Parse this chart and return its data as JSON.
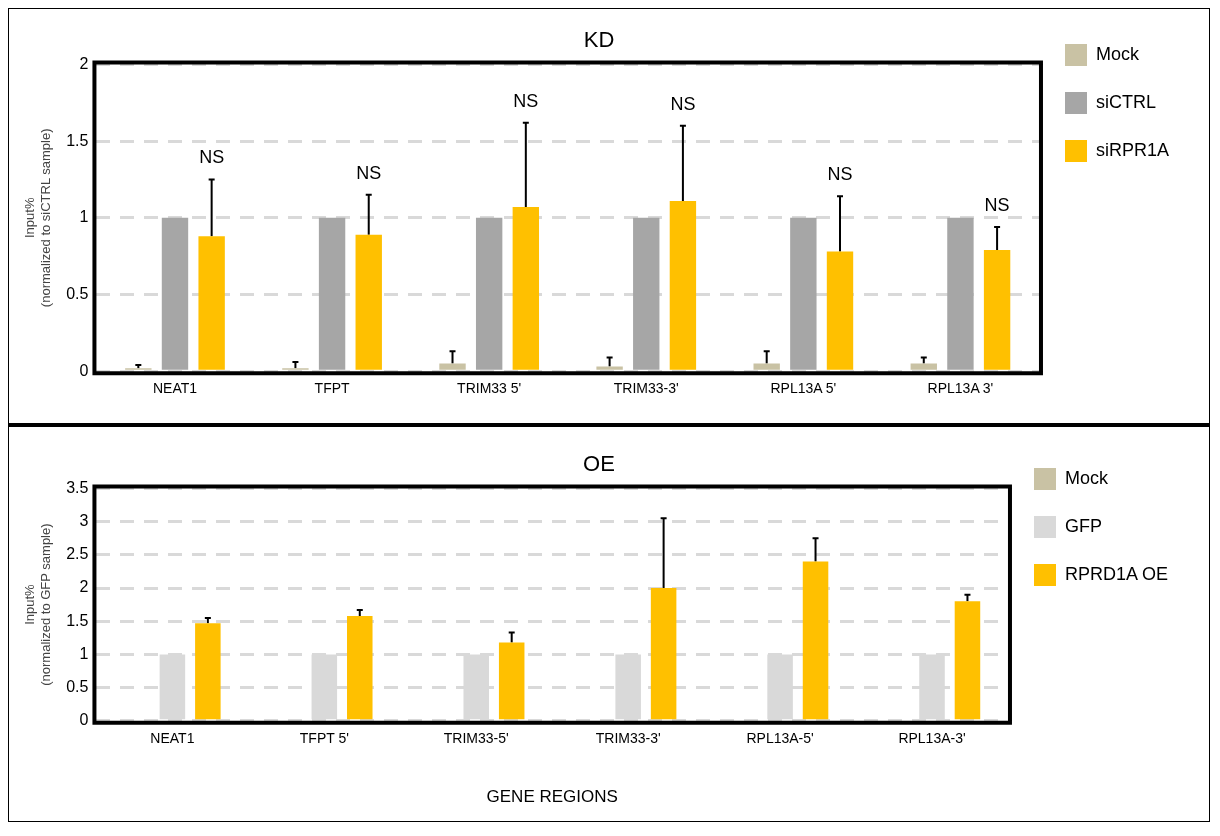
{
  "chart_data": [
    {
      "type": "bar",
      "title": "KD",
      "ylabel": "Input%\n(normalized to siCTRL sample)",
      "categories": [
        "NEAT1",
        "TFPT",
        "TRIM33 5'",
        "TRIM33-3'",
        "RPL13A 5'",
        "RPL13A 3'"
      ],
      "series": [
        {
          "name": "Mock",
          "color": "#c9c2a4",
          "values": [
            0.02,
            0.02,
            0.05,
            0.03,
            0.05,
            0.05
          ],
          "errors": [
            [
              0.02,
              0.04
            ],
            [
              0.02,
              0.06
            ],
            [
              0.05,
              0.13
            ],
            [
              0.03,
              0.09
            ],
            [
              0.05,
              0.13
            ],
            [
              0.05,
              0.09
            ]
          ]
        },
        {
          "name": "siCTRL",
          "color": "#a6a6a6",
          "values": [
            1,
            1,
            1,
            1,
            1,
            1
          ]
        },
        {
          "name": "siRPR1A",
          "color": "#ffc000",
          "values": [
            0.88,
            0.89,
            1.07,
            1.11,
            0.78,
            0.79
          ],
          "errors": [
            [
              0.88,
              1.25
            ],
            [
              0.89,
              1.15
            ],
            [
              1.07,
              1.62
            ],
            [
              1.11,
              1.6
            ],
            [
              0.78,
              1.14
            ],
            [
              0.79,
              0.94
            ]
          ]
        }
      ],
      "ylim": [
        0,
        2
      ],
      "yticks": [
        0,
        0.5,
        1,
        1.5,
        2
      ],
      "grid": "y",
      "legend": "right",
      "annotations": [
        "NS",
        "NS",
        "NS",
        "NS",
        "NS",
        "NS"
      ]
    },
    {
      "type": "bar",
      "title": "OE",
      "xlabel": "GENE REGIONS",
      "ylabel": "Input%\n(normalized to GFP sample)",
      "categories": [
        "NEAT1",
        "TFPT 5'",
        "TRIM33-5'",
        "TRIM33-3'",
        "RPL13A-5'",
        "RPL13A-3'"
      ],
      "series": [
        {
          "name": "Mock",
          "color": "#c9c2a4",
          "values": [
            0,
            0,
            0,
            0,
            0,
            0
          ]
        },
        {
          "name": "GFP",
          "color": "#d9d9d9",
          "values": [
            1,
            1,
            1,
            1,
            1,
            1
          ]
        },
        {
          "name": "RPRD1A OE",
          "color": "#ffc000",
          "values": [
            1.47,
            1.58,
            1.18,
            2.0,
            2.4,
            1.8
          ],
          "errors": [
            [
              1.47,
              1.55
            ],
            [
              1.58,
              1.67
            ],
            [
              1.18,
              1.33
            ],
            [
              2.0,
              3.05
            ],
            [
              2.4,
              2.75
            ],
            [
              1.8,
              1.9
            ]
          ]
        }
      ],
      "ylim": [
        0,
        3.5
      ],
      "yticks": [
        0,
        0.5,
        1,
        1.5,
        2,
        2.5,
        3,
        3.5
      ],
      "grid": "y",
      "legend": "right"
    }
  ]
}
